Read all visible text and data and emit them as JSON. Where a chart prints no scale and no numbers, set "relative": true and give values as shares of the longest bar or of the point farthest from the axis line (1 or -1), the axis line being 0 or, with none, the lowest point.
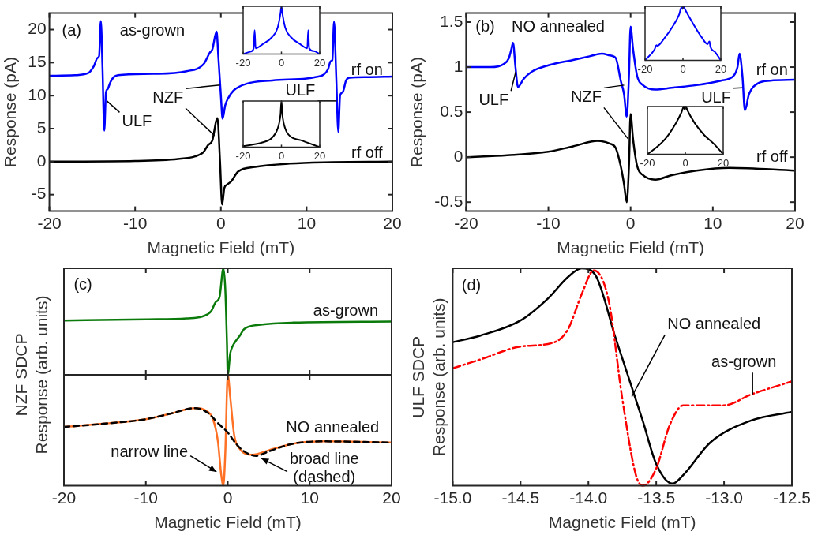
{
  "chart_data": [
    {
      "type": "line",
      "xlabel": "Magnetic Field (mT)",
      "ylabel": "Response (pA)",
      "xlim": [
        -20,
        20
      ],
      "ylim": [
        -7.5,
        22.5
      ],
      "xticks": [
        -20,
        -10,
        0,
        10,
        20
      ],
      "yticks": [
        -5,
        0,
        5,
        10,
        15,
        20
      ],
      "annotations": [
        "(a)",
        "as-grown",
        {
          "text": "NZF",
          "x": -0.1,
          "y": 11.6
        },
        {
          "text": "ULF",
          "x": -13.3,
          "y": 9.2
        },
        {
          "text": "ULF",
          "x": 13.5,
          "y": 9.2
        }
      ],
      "series": [
        {
          "name": "rf on",
          "color": "#0000ff",
          "x": [
            -20,
            -17,
            -15.5,
            -14.8,
            -14.4,
            -14.2,
            -14.0,
            -13.8,
            -13.6,
            -13.4,
            -13.2,
            -12.9,
            -12.5,
            -12,
            -8,
            -4,
            -2,
            -1.3,
            -1.0,
            -0.5,
            -0.3,
            0,
            0.2,
            0.5,
            0.8,
            1.5,
            3,
            6,
            10,
            11,
            12,
            12.5,
            12.8,
            13.0,
            13.2,
            13.45,
            13.7,
            13.9,
            14.2,
            14.6,
            15,
            17,
            20
          ],
          "values": [
            13,
            13.1,
            13.4,
            14.5,
            15.7,
            16,
            21.3,
            14,
            4.7,
            10.5,
            11,
            12,
            12.8,
            13.1,
            13.3,
            13.7,
            14.8,
            16.5,
            17,
            19.7,
            16,
            10,
            6.5,
            8.5,
            9.5,
            10.8,
            11.8,
            12.3,
            12.6,
            12.8,
            13.2,
            14,
            15.2,
            15.4,
            21.2,
            13,
            4.5,
            10,
            10.5,
            12.3,
            12.7,
            12.8,
            12.9
          ]
        },
        {
          "name": "rf off",
          "color": "#000000",
          "x": [
            -20,
            -10,
            -5,
            -3,
            -2,
            -1.5,
            -1,
            -0.4,
            -0.1,
            0.15,
            0.4,
            0.7,
            1.2,
            2,
            4,
            8,
            12,
            20
          ],
          "values": [
            0,
            0.1,
            0.4,
            0.8,
            1.5,
            2.5,
            3.2,
            6.6,
            0,
            -6.5,
            -4,
            -3.5,
            -3,
            -1.5,
            -0.8,
            -0.3,
            -0.1,
            0
          ]
        }
      ]
    },
    {
      "type": "line",
      "relative": true,
      "tick_labels": "x",
      "xlim": [
        -20,
        20
      ],
      "xticks": [
        -20,
        0,
        20
      ],
      "series": [
        {
          "color": "#0000ff",
          "x": [
            -20,
            -16,
            -14.5,
            -14,
            -13.5,
            -10,
            -5,
            -2,
            -0.5,
            0,
            0.5,
            2,
            5,
            10,
            13.5,
            14,
            14.5,
            17,
            20
          ],
          "values": [
            0,
            0.05,
            0.12,
            0.5,
            0.12,
            0.2,
            0.35,
            0.55,
            0.85,
            1,
            0.85,
            0.55,
            0.35,
            0.2,
            0.12,
            0.5,
            0.12,
            0.06,
            0
          ]
        }
      ]
    },
    {
      "type": "line",
      "relative": true,
      "tick_labels": "x",
      "xlim": [
        -20,
        20
      ],
      "xticks": [
        -20,
        0,
        20
      ],
      "series": [
        {
          "color": "#000000",
          "x": [
            -20,
            -10,
            -5,
            -2,
            -0.5,
            0,
            0.5,
            2,
            5,
            10,
            20
          ],
          "values": [
            0.02,
            0.1,
            0.2,
            0.4,
            0.7,
            1,
            0.7,
            0.4,
            0.22,
            0.15,
            0
          ]
        }
      ]
    },
    {
      "type": "line",
      "xlabel": "Magnetic Field (mT)",
      "ylabel": "Response (pA)",
      "xlim": [
        -20,
        20
      ],
      "ylim": [
        -0.6,
        1.6
      ],
      "xticks": [
        -20,
        -10,
        0,
        10,
        20
      ],
      "yticks": [
        -0.5,
        0,
        0.5,
        1,
        1.5
      ],
      "annotations": [
        "(b)",
        "NO annealed",
        {
          "text": "ULF",
          "x": -13.96,
          "y": 0.95
        },
        {
          "text": "NZF",
          "x": -0.79,
          "y": 0.8
        },
        {
          "text": "ULF",
          "x": 13.57,
          "y": 0.77
        }
      ],
      "series": [
        {
          "name": "rf on",
          "color": "#0000ff",
          "x": [
            -20,
            -17,
            -15.5,
            -14.8,
            -14.5,
            -14.3,
            -14.0,
            -13.7,
            -13,
            -12,
            -10,
            -7,
            -5,
            -3.5,
            -2.5,
            -1.8,
            -1.2,
            -0.8,
            -0.47,
            -0.2,
            0,
            0.3,
            0.8,
            1.5,
            3,
            5,
            8,
            11,
            12.5,
            13.0,
            13.25,
            13.6,
            13.9,
            14.4,
            15.5,
            17,
            20
          ],
          "values": [
            1.0,
            1.0,
            1.03,
            1.1,
            1.2,
            1.27,
            1.0,
            0.78,
            0.87,
            0.95,
            1.02,
            1.08,
            1.12,
            1.15,
            1.13,
            1.1,
            0.85,
            0.7,
            0.45,
            0.9,
            1.45,
            1.2,
            0.9,
            0.8,
            0.75,
            0.77,
            0.8,
            0.85,
            0.9,
            1.0,
            1.15,
            0.9,
            0.52,
            0.7,
            0.82,
            0.85,
            0.86
          ]
        },
        {
          "name": "rf off",
          "color": "#000000",
          "x": [
            -20,
            -15,
            -10,
            -7,
            -4,
            -2.5,
            -1.8,
            -1.2,
            -0.8,
            -0.47,
            -0.2,
            0,
            0.3,
            0.8,
            1.5,
            3,
            5,
            8,
            12,
            20
          ],
          "values": [
            0,
            0.02,
            0.06,
            0.12,
            0.18,
            0.15,
            0.1,
            -0.1,
            -0.3,
            -0.5,
            -0.1,
            0.48,
            0.2,
            -0.1,
            -0.2,
            -0.25,
            -0.2,
            -0.15,
            -0.12,
            -0.15
          ]
        }
      ]
    },
    {
      "type": "line",
      "relative": true,
      "tick_labels": "x",
      "xlim": [
        -20,
        20
      ],
      "xticks": [
        -20,
        0,
        20
      ],
      "series": [
        {
          "color": "#0000ff",
          "x": [
            -20,
            -15,
            -14,
            -13.5,
            -10,
            -5,
            -2,
            -0.8,
            -0.3,
            0.3,
            1,
            5,
            10,
            13,
            14,
            14.5,
            17,
            20
          ],
          "values": [
            0,
            0.2,
            0.28,
            0.27,
            0.4,
            0.65,
            0.85,
            0.98,
            0.95,
            1,
            0.95,
            0.7,
            0.42,
            0.3,
            0.35,
            0.25,
            0.15,
            0
          ]
        }
      ]
    },
    {
      "type": "line",
      "relative": true,
      "tick_labels": "x",
      "xlim": [
        -20,
        20
      ],
      "xticks": [
        -20,
        0,
        20
      ],
      "series": [
        {
          "color": "#000000",
          "x": [
            -20,
            -15,
            -10,
            -5,
            -2,
            -0.8,
            -0.3,
            0.3,
            1,
            5,
            10,
            15,
            20
          ],
          "values": [
            0,
            0.15,
            0.35,
            0.65,
            0.88,
            1,
            0.93,
            1,
            0.93,
            0.65,
            0.4,
            0.22,
            0
          ]
        }
      ]
    },
    {
      "type": "line",
      "relative": true,
      "tick_labels": false,
      "ylabel": "NZF SDCP\nResponse (arb. units)",
      "xlim": [
        -20,
        20
      ],
      "xticks": [
        -20,
        -10,
        0,
        10,
        20
      ],
      "annotations": [
        "(c)"
      ],
      "series": [
        {
          "name": "as-grown",
          "color": "#0a7a0a",
          "x": [
            -20,
            -10,
            -5,
            -3,
            -2,
            -1.5,
            -1,
            -0.54,
            -0.3,
            -0.1,
            0,
            0.3,
            0.6,
            1.0,
            1.5,
            2,
            4,
            8,
            20
          ],
          "values": [
            0.51,
            0.52,
            0.53,
            0.55,
            0.6,
            0.68,
            0.73,
            1,
            0.8,
            0.3,
            0,
            0.2,
            0.27,
            0.32,
            0.37,
            0.43,
            0.47,
            0.49,
            0.5
          ]
        }
      ]
    },
    {
      "type": "line",
      "relative": true,
      "xlabel": "Magnetic Field (mT)",
      "xlim": [
        -20,
        20
      ],
      "xticks": [
        -20,
        -10,
        0,
        10,
        20
      ],
      "annotations": [
        {
          "text": "narrow line",
          "x": -0.8,
          "y": 0.1
        },
        {
          "text": "broad line\n(dashed)",
          "x": 3.5,
          "y": 0.27
        }
      ],
      "series": [
        {
          "name": "NO annealed",
          "color": "#ff7125",
          "x": [
            -20,
            -15,
            -10,
            -7,
            -4,
            -2.5,
            -1.8,
            -1.2,
            -0.8,
            -0.54,
            -0.3,
            0,
            0.3,
            0.8,
            1.5,
            3,
            5,
            8,
            12,
            20
          ],
          "values": [
            0.53,
            0.56,
            0.6,
            0.65,
            0.7,
            0.67,
            0.6,
            0.4,
            0.1,
            0,
            0.3,
            1,
            0.8,
            0.45,
            0.33,
            0.28,
            0.32,
            0.38,
            0.4,
            0.39
          ]
        },
        {
          "color": "#000000",
          "line_style": "dashed",
          "x": [
            -20,
            -15,
            -10,
            -7,
            -4,
            -2.5,
            -1,
            0,
            1,
            2,
            3.5,
            5,
            8,
            12,
            20
          ],
          "values": [
            0.53,
            0.56,
            0.6,
            0.65,
            0.7,
            0.66,
            0.55,
            0.48,
            0.38,
            0.31,
            0.27,
            0.31,
            0.38,
            0.4,
            0.39
          ]
        }
      ]
    },
    {
      "type": "line",
      "relative": true,
      "tick_labels": "x",
      "xlabel": "Magnetic Field (mT)",
      "ylabel": "ULF SDCP\nResponse (arb. units)",
      "xlim": [
        -15,
        -12.5
      ],
      "xticks": [
        {
          "value": -15,
          "label": "-15.0"
        },
        {
          "value": -14.5,
          "label": "-14.5"
        },
        {
          "value": -14,
          "label": "-14.0"
        },
        {
          "value": -13.5,
          "label": "-13.5"
        },
        {
          "value": -13,
          "label": "-13.0"
        },
        {
          "value": -12.5,
          "label": "-12.5"
        }
      ],
      "annotations": [
        "(d)",
        {
          "text": "NO annealed",
          "x": -13.68,
          "y": 0.41
        },
        {
          "text": "as-grown",
          "x": -12.79,
          "y": 0.42
        }
      ],
      "series": [
        {
          "color": "#000000",
          "x": [
            -15,
            -14.8,
            -14.5,
            -14.3,
            -14.15,
            -14.05,
            -13.95,
            -13.8,
            -13.6,
            -13.5,
            -13.38,
            -13.3,
            -13.1,
            -12.8,
            -12.5
          ],
          "values": [
            0.66,
            0.69,
            0.76,
            0.86,
            0.96,
            1,
            0.97,
            0.68,
            0.3,
            0.1,
            0.01,
            0.05,
            0.2,
            0.3,
            0.34
          ]
        },
        {
          "color": "#ff0000",
          "line_style": "dashdot",
          "x": [
            -15,
            -14.8,
            -14.5,
            -14.25,
            -14.15,
            -14.05,
            -13.96,
            -13.85,
            -13.75,
            -13.65,
            -13.6,
            -13.5,
            -13.4,
            -13.3,
            -13.1,
            -13.0,
            -12.8,
            -12.5
          ],
          "values": [
            0.54,
            0.58,
            0.64,
            0.66,
            0.72,
            0.88,
            0.99,
            0.85,
            0.4,
            0.05,
            0,
            0.08,
            0.28,
            0.37,
            0.37,
            0.37,
            0.42,
            0.48
          ]
        }
      ]
    }
  ]
}
